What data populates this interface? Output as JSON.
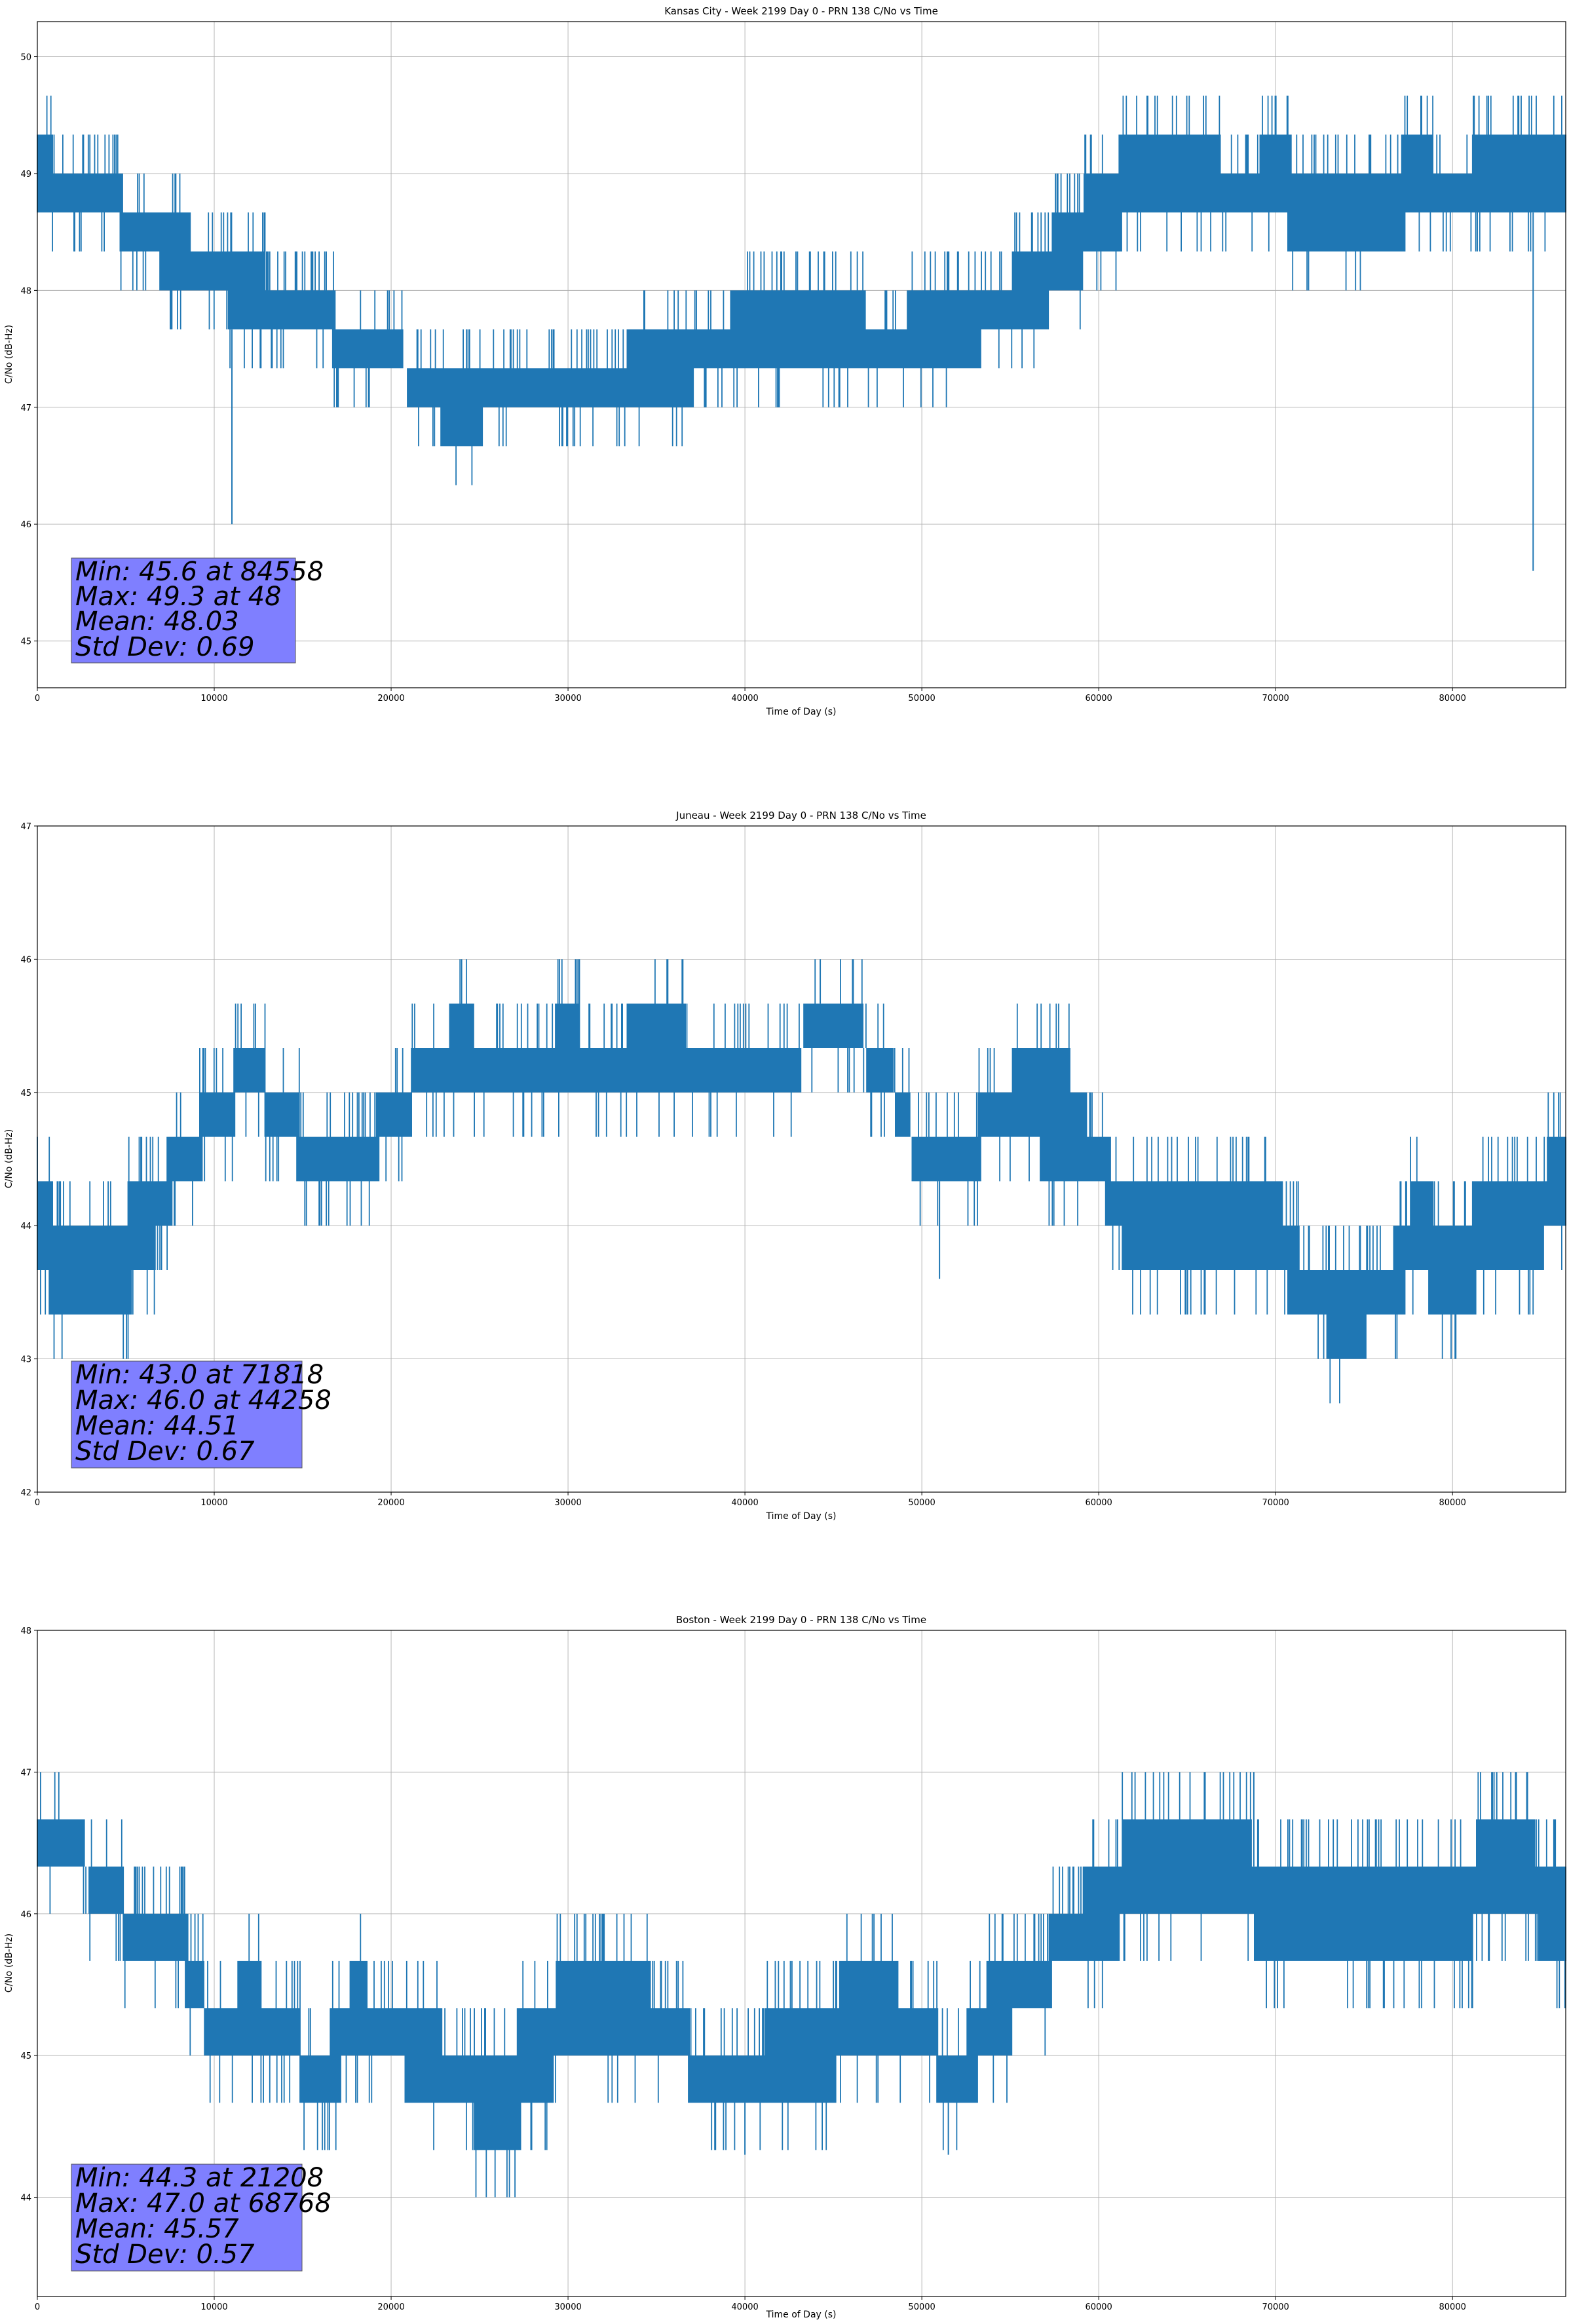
{
  "chart_data": [
    {
      "type": "line",
      "title": "Kansas City - Week 2199 Day 0 - PRN 138 C/No vs Time",
      "xlabel": "Time of Day (s)",
      "ylabel": "C/No (dB-Hz)",
      "xlim": [
        0,
        86400
      ],
      "ylim": [
        44.6,
        50.3
      ],
      "xticks": [
        0,
        10000,
        20000,
        30000,
        40000,
        50000,
        60000,
        70000,
        80000
      ],
      "yticks": [
        45,
        46,
        47,
        48,
        49,
        50
      ],
      "grid": true,
      "color": "#1f77b4",
      "series": [
        {
          "x": [
            0,
            2000,
            4000,
            6000,
            8000,
            10000,
            12000,
            14000,
            16000,
            18000,
            20000,
            22000,
            24000,
            26000,
            28000,
            30000,
            32000,
            34000,
            36000,
            38000,
            40000,
            42000,
            44000,
            46000,
            48000,
            50000,
            52000,
            54000,
            56000,
            58000,
            60000,
            62000,
            64000,
            66000,
            68000,
            70000,
            72000,
            74000,
            76000,
            78000,
            80000,
            82000,
            84000,
            86000
          ],
          "lo": [
            48.6,
            48.6,
            48.6,
            48.3,
            48.0,
            48.0,
            47.6,
            47.6,
            47.6,
            47.3,
            47.3,
            47.0,
            46.6,
            47.0,
            47.0,
            47.0,
            47.0,
            47.0,
            47.0,
            47.3,
            47.3,
            47.3,
            47.3,
            47.3,
            47.3,
            47.3,
            47.3,
            47.6,
            47.6,
            48.0,
            48.3,
            48.6,
            48.6,
            48.6,
            48.6,
            48.6,
            48.3,
            48.3,
            48.3,
            48.6,
            48.6,
            48.6,
            48.6,
            48.6
          ],
          "hi": [
            49.3,
            49.0,
            49.0,
            48.6,
            48.6,
            48.3,
            48.3,
            48.0,
            48.0,
            47.6,
            47.6,
            47.3,
            47.3,
            47.3,
            47.3,
            47.3,
            47.3,
            47.6,
            47.6,
            47.6,
            48.0,
            48.0,
            48.0,
            48.0,
            47.6,
            48.0,
            48.0,
            48.0,
            48.3,
            48.6,
            49.0,
            49.3,
            49.3,
            49.3,
            49.0,
            49.3,
            49.0,
            49.0,
            49.0,
            49.3,
            49.0,
            49.3,
            49.3,
            49.3
          ]
        }
      ],
      "spikes": [
        {
          "x": 11000,
          "y": 46.0
        },
        {
          "x": 84558,
          "y": 45.6
        }
      ],
      "stats": [
        "Min: 45.6 at 84558",
        "Max: 49.3 at 48",
        "Mean: 48.03",
        "Std Dev: 0.69"
      ]
    },
    {
      "type": "line",
      "title": "Juneau - Week 2199 Day 0 - PRN 138 C/No vs Time",
      "xlabel": "Time of Day (s)",
      "ylabel": "C/No (dB-Hz)",
      "xlim": [
        0,
        86400
      ],
      "ylim": [
        42,
        47
      ],
      "xticks": [
        0,
        10000,
        20000,
        30000,
        40000,
        50000,
        60000,
        70000,
        80000
      ],
      "yticks": [
        42,
        43,
        44,
        45,
        46,
        47
      ],
      "grid": true,
      "color": "#1f77b4",
      "series": [
        {
          "x": [
            0,
            2000,
            4000,
            6000,
            8000,
            10000,
            12000,
            14000,
            16000,
            18000,
            20000,
            22000,
            24000,
            26000,
            28000,
            30000,
            32000,
            34000,
            36000,
            38000,
            40000,
            42000,
            44000,
            46000,
            48000,
            50000,
            52000,
            54000,
            56000,
            58000,
            60000,
            62000,
            64000,
            66000,
            68000,
            70000,
            72000,
            74000,
            76000,
            78000,
            80000,
            82000,
            84000,
            86000
          ],
          "lo": [
            43.6,
            43.3,
            43.3,
            43.6,
            44.3,
            44.6,
            45.0,
            44.6,
            44.3,
            44.3,
            44.6,
            45.0,
            45.0,
            45.0,
            45.0,
            45.0,
            45.0,
            45.0,
            45.0,
            45.0,
            45.0,
            45.0,
            45.3,
            45.3,
            45.0,
            44.3,
            44.3,
            44.6,
            44.6,
            44.3,
            44.3,
            43.6,
            43.6,
            43.6,
            43.6,
            43.6,
            43.3,
            43.0,
            43.3,
            43.6,
            43.3,
            43.6,
            43.6,
            44.0
          ],
          "hi": [
            44.3,
            44.0,
            44.0,
            44.3,
            44.6,
            45.0,
            45.3,
            45.0,
            44.6,
            44.6,
            45.0,
            45.3,
            45.6,
            45.3,
            45.3,
            45.6,
            45.3,
            45.6,
            45.6,
            45.3,
            45.3,
            45.3,
            45.6,
            45.6,
            45.3,
            44.6,
            44.6,
            45.0,
            45.3,
            45.3,
            44.6,
            44.3,
            44.3,
            44.3,
            44.3,
            44.3,
            43.6,
            43.6,
            43.6,
            44.3,
            44.0,
            44.3,
            44.3,
            44.6
          ]
        }
      ],
      "spikes": [
        {
          "x": 44258,
          "y": 46.0
        },
        {
          "x": 51000,
          "y": 43.6
        }
      ],
      "stats": [
        "Min: 43.0 at 71818",
        "Max: 46.0 at 44258",
        "Mean: 44.51",
        "Std Dev: 0.67"
      ]
    },
    {
      "type": "line",
      "title": "Boston - Week 2199 Day 0 - PRN 138 C/No vs Time",
      "xlabel": "Time of Day (s)",
      "ylabel": "C/No (dB-Hz)",
      "xlim": [
        0,
        86400
      ],
      "ylim": [
        43.3,
        48
      ],
      "xticks": [
        0,
        10000,
        20000,
        30000,
        40000,
        50000,
        60000,
        70000,
        80000
      ],
      "yticks": [
        44,
        45,
        46,
        47,
        48
      ],
      "grid": true,
      "color": "#1f77b4",
      "series": [
        {
          "x": [
            0,
            2000,
            4000,
            6000,
            8000,
            10000,
            12000,
            14000,
            16000,
            18000,
            20000,
            22000,
            24000,
            26000,
            28000,
            30000,
            32000,
            34000,
            36000,
            38000,
            40000,
            42000,
            44000,
            46000,
            48000,
            50000,
            52000,
            54000,
            56000,
            58000,
            60000,
            62000,
            64000,
            66000,
            68000,
            70000,
            72000,
            74000,
            76000,
            78000,
            80000,
            82000,
            84000,
            86000
          ],
          "lo": [
            46.3,
            46.3,
            46.0,
            45.6,
            45.6,
            45.0,
            45.0,
            45.0,
            44.6,
            45.0,
            45.0,
            44.6,
            44.6,
            44.3,
            44.6,
            45.0,
            45.0,
            45.0,
            45.0,
            44.6,
            44.6,
            44.6,
            44.6,
            45.0,
            45.0,
            45.0,
            44.6,
            45.0,
            45.3,
            45.6,
            45.6,
            46.0,
            46.0,
            46.0,
            46.0,
            45.6,
            45.6,
            45.6,
            45.6,
            45.6,
            45.6,
            46.0,
            46.0,
            45.6
          ],
          "hi": [
            46.6,
            46.6,
            46.3,
            46.0,
            46.0,
            45.3,
            45.6,
            45.3,
            45.0,
            45.6,
            45.3,
            45.3,
            45.0,
            45.0,
            45.3,
            45.6,
            45.6,
            45.6,
            45.3,
            45.0,
            45.0,
            45.3,
            45.3,
            45.6,
            45.6,
            45.3,
            45.0,
            45.6,
            45.6,
            46.0,
            46.3,
            46.6,
            46.6,
            46.6,
            46.6,
            46.3,
            46.3,
            46.3,
            46.3,
            46.3,
            46.3,
            46.6,
            46.6,
            46.3
          ]
        }
      ],
      "spikes": [
        {
          "x": 68768,
          "y": 47.0
        },
        {
          "x": 82500,
          "y": 47.0
        },
        {
          "x": 40000,
          "y": 44.3
        },
        {
          "x": 51500,
          "y": 44.3
        }
      ],
      "stats": [
        "Min: 44.3 at 21208",
        "Max: 47.0 at 68768",
        "Mean: 45.57",
        "Std Dev: 0.57"
      ]
    }
  ]
}
